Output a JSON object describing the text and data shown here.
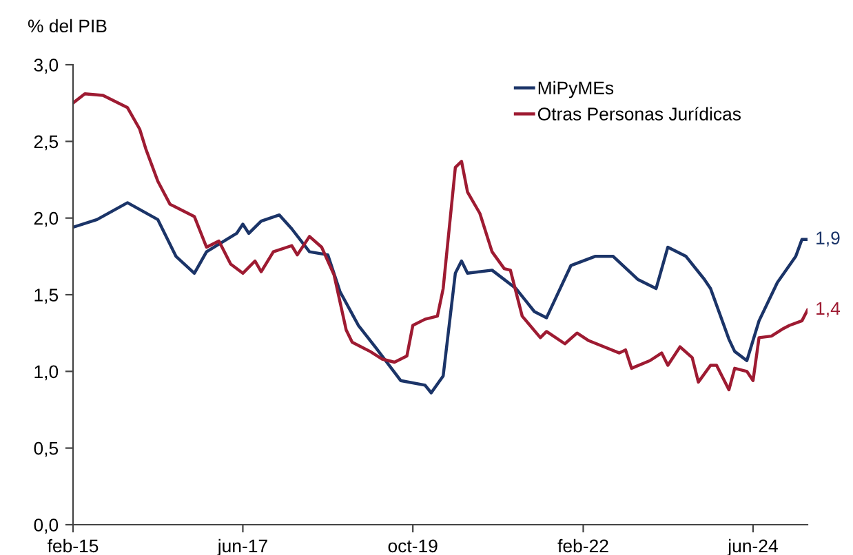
{
  "chart_data": {
    "type": "line",
    "ylabel": "% del PIB",
    "xlim": [
      "2015-02",
      "2025-03"
    ],
    "xticks": [
      {
        "value": "2015-02",
        "label": "feb-15"
      },
      {
        "value": "2017-06",
        "label": "jun-17"
      },
      {
        "value": "2019-10",
        "label": "oct-19"
      },
      {
        "value": "2022-02",
        "label": "feb-22"
      },
      {
        "value": "2024-06",
        "label": "jun-24"
      }
    ],
    "ylim": [
      0,
      3
    ],
    "yticks": [
      {
        "value": 0,
        "label": "0,0"
      },
      {
        "value": 0.5,
        "label": "0,5"
      },
      {
        "value": 1,
        "label": "1,0"
      },
      {
        "value": 1.5,
        "label": "1,5"
      },
      {
        "value": 2,
        "label": "2,0"
      },
      {
        "value": 2.5,
        "label": "2,5"
      },
      {
        "value": 3,
        "label": "3,0"
      }
    ],
    "grid": false,
    "legend": "top right",
    "marker": "none",
    "line_style": "solid",
    "series": [
      {
        "name": "MiPyMEs",
        "color": "#1b3468",
        "x": [
          "2015-02",
          "2015-06",
          "2015-11",
          "2016-04",
          "2016-07",
          "2016-10",
          "2016-12",
          "2017-05",
          "2017-06",
          "2017-07",
          "2017-09",
          "2017-12",
          "2018-02",
          "2018-05",
          "2018-08",
          "2018-10",
          "2019-01",
          "2019-04",
          "2019-08",
          "2019-12",
          "2020-01",
          "2020-03",
          "2020-05",
          "2020-06",
          "2020-07",
          "2020-11",
          "2021-03",
          "2021-06",
          "2021-08",
          "2021-12",
          "2022-04",
          "2022-07",
          "2022-11",
          "2023-02",
          "2023-04",
          "2023-07",
          "2023-10",
          "2023-11",
          "2024-02",
          "2024-03",
          "2024-05",
          "2024-07",
          "2024-10",
          "2025-01",
          "2025-02",
          "2025-03"
        ],
        "values": [
          1.94,
          1.99,
          2.1,
          1.99,
          1.75,
          1.64,
          1.78,
          1.9,
          1.96,
          1.9,
          1.98,
          2.02,
          1.93,
          1.78,
          1.76,
          1.52,
          1.3,
          1.15,
          0.94,
          0.91,
          0.86,
          0.97,
          1.64,
          1.72,
          1.64,
          1.66,
          1.54,
          1.39,
          1.35,
          1.69,
          1.75,
          1.75,
          1.6,
          1.54,
          1.81,
          1.75,
          1.6,
          1.54,
          1.21,
          1.13,
          1.07,
          1.33,
          1.58,
          1.75,
          1.86,
          1.86
        ]
      },
      {
        "name": "Otras Personas Jurídicas",
        "color": "#9e1b32",
        "x": [
          "2015-02",
          "2015-04",
          "2015-07",
          "2015-11",
          "2016-01",
          "2016-02",
          "2016-04",
          "2016-06",
          "2016-10",
          "2016-12",
          "2017-02",
          "2017-04",
          "2017-06",
          "2017-08",
          "2017-09",
          "2017-11",
          "2018-02",
          "2018-03",
          "2018-05",
          "2018-07",
          "2018-09",
          "2018-11",
          "2018-12",
          "2019-03",
          "2019-05",
          "2019-07",
          "2019-09",
          "2019-10",
          "2019-12",
          "2020-02",
          "2020-03",
          "2020-05",
          "2020-06",
          "2020-07",
          "2020-09",
          "2020-11",
          "2021-01",
          "2021-02",
          "2021-04",
          "2021-07",
          "2021-08",
          "2021-11",
          "2022-01",
          "2022-03",
          "2022-08",
          "2022-09",
          "2022-10",
          "2023-01",
          "2023-03",
          "2023-04",
          "2023-06",
          "2023-08",
          "2023-09",
          "2023-11",
          "2023-12",
          "2024-02",
          "2024-03",
          "2024-05",
          "2024-06",
          "2024-07",
          "2024-09",
          "2024-11",
          "2024-12",
          "2025-02",
          "2025-03"
        ],
        "values": [
          2.75,
          2.81,
          2.8,
          2.72,
          2.58,
          2.45,
          2.24,
          2.09,
          2.01,
          1.81,
          1.85,
          1.7,
          1.64,
          1.72,
          1.65,
          1.78,
          1.82,
          1.76,
          1.88,
          1.81,
          1.63,
          1.27,
          1.19,
          1.13,
          1.08,
          1.06,
          1.1,
          1.3,
          1.34,
          1.36,
          1.54,
          2.33,
          2.37,
          2.17,
          2.03,
          1.78,
          1.67,
          1.66,
          1.36,
          1.22,
          1.26,
          1.18,
          1.25,
          1.2,
          1.12,
          1.14,
          1.02,
          1.07,
          1.12,
          1.04,
          1.16,
          1.09,
          0.93,
          1.04,
          1.04,
          0.88,
          1.02,
          1.0,
          0.94,
          1.22,
          1.23,
          1.28,
          1.3,
          1.33,
          1.4
        ]
      }
    ],
    "annotations": [
      {
        "text": "1,9",
        "x": "2025-03",
        "y": 1.86
      },
      {
        "text": "1,4",
        "x": "2025-03",
        "y": 1.4
      }
    ]
  }
}
